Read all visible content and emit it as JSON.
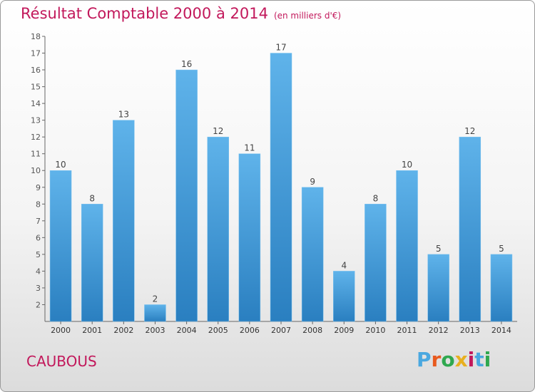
{
  "header": {
    "title": "Résultat Comptable 2000 à 2014",
    "unit": "(en milliers d'€)"
  },
  "footer": {
    "city": "CAUBOUS",
    "logo_text": "Proxiti",
    "logo_colors": [
      "#4aa8e0",
      "#e85a1e",
      "#2fa84f",
      "#e8b020",
      "#c2185b",
      "#4aa8e0",
      "#2fa84f"
    ]
  },
  "chart_data": {
    "type": "bar",
    "title": "Résultat Comptable 2000 à 2014",
    "xlabel": "",
    "ylabel": "",
    "categories": [
      "2000",
      "2001",
      "2002",
      "2003",
      "2004",
      "2005",
      "2006",
      "2007",
      "2008",
      "2009",
      "2010",
      "2011",
      "2012",
      "2013",
      "2014"
    ],
    "values": [
      10,
      8,
      13,
      2,
      16,
      12,
      11,
      17,
      9,
      4,
      8,
      10,
      5,
      12,
      5
    ],
    "ylim": [
      1,
      18
    ],
    "yticks": [
      2,
      3,
      4,
      5,
      6,
      7,
      8,
      9,
      10,
      11,
      12,
      13,
      14,
      15,
      16,
      17,
      18
    ],
    "grid": false,
    "bar_color_top": "#5fb3ea",
    "bar_color_bottom": "#2a7fc0",
    "label_color": "#444444"
  }
}
